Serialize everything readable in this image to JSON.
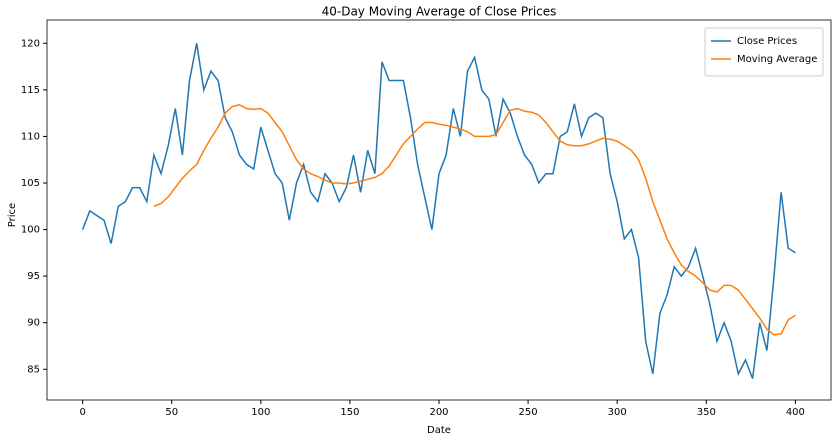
{
  "chart_data": {
    "type": "line",
    "title": "40-Day Moving Average of Close Prices",
    "x_label": "Date",
    "y_label": "Price",
    "x": [
      0,
      4,
      8,
      12,
      16,
      20,
      24,
      28,
      32,
      36,
      40,
      44,
      48,
      52,
      56,
      60,
      64,
      68,
      72,
      76,
      80,
      84,
      88,
      92,
      96,
      100,
      104,
      108,
      112,
      116,
      120,
      124,
      128,
      132,
      136,
      140,
      144,
      148,
      152,
      156,
      160,
      164,
      168,
      172,
      176,
      180,
      184,
      188,
      192,
      196,
      200,
      204,
      208,
      212,
      216,
      220,
      224,
      228,
      232,
      236,
      240,
      244,
      248,
      252,
      256,
      260,
      264,
      268,
      272,
      276,
      280,
      284,
      288,
      292,
      296,
      300,
      304,
      308,
      312,
      316,
      320,
      324,
      328,
      332,
      336,
      340,
      344,
      348,
      352,
      356,
      360,
      364,
      368,
      372,
      376,
      380,
      384,
      388,
      392,
      396,
      400
    ],
    "series": [
      {
        "name": "Close Prices",
        "color": "#1f77b4",
        "values": [
          100,
          102,
          101.5,
          101,
          98.5,
          102.5,
          103,
          104.5,
          104.5,
          103,
          108,
          106,
          109,
          113,
          108,
          116,
          120,
          115,
          117,
          116,
          112,
          110.5,
          108,
          107,
          106.5,
          111,
          108.5,
          106,
          105,
          101,
          105,
          107,
          104,
          103,
          106,
          105,
          103,
          104.5,
          108,
          104,
          108.5,
          106,
          118,
          116,
          116,
          116,
          112,
          107,
          103.5,
          100,
          106,
          108,
          113,
          110,
          117,
          118.5,
          115,
          114,
          110,
          114,
          112.5,
          110,
          108,
          107,
          105,
          106,
          106,
          110,
          110.5,
          113.5,
          110,
          112,
          112.5,
          112,
          106,
          103,
          99,
          100,
          97,
          88,
          84.5,
          91,
          93,
          96,
          95,
          96,
          98,
          95,
          92,
          88,
          90,
          88,
          84.5,
          86,
          84,
          90,
          87,
          95,
          104,
          98,
          97.5
        ]
      },
      {
        "name": "Moving Average",
        "color": "#ff7f0e",
        "values": [
          null,
          null,
          null,
          null,
          null,
          null,
          null,
          null,
          null,
          null,
          102.5,
          102.8,
          103.5,
          104.5,
          105.5,
          106.3,
          107,
          108.5,
          109.8,
          111,
          112.5,
          113.2,
          113.4,
          113,
          112.9,
          113,
          112.5,
          111.5,
          110.5,
          109,
          107.5,
          106.5,
          106,
          105.7,
          105.3,
          105,
          105,
          104.9,
          105,
          105.2,
          105.4,
          105.6,
          106,
          106.8,
          108,
          109.2,
          110,
          110.8,
          111.5,
          111.5,
          111.3,
          111.2,
          111,
          110.8,
          110.5,
          110,
          110,
          110,
          110.2,
          111.5,
          112.8,
          113,
          112.7,
          112.6,
          112.3,
          111.5,
          110.5,
          109.5,
          109.1,
          109,
          109,
          109.2,
          109.5,
          109.8,
          109.7,
          109.5,
          109,
          108.5,
          107.5,
          105.5,
          103,
          101,
          99,
          97.5,
          96.2,
          95.5,
          95,
          94.3,
          93.5,
          93.3,
          94,
          94,
          93.5,
          92.5,
          91.5,
          90.5,
          89.3,
          88.7,
          88.8,
          90.3,
          90.8
        ]
      }
    ],
    "xlim": [
      -20,
      420
    ],
    "ylim": [
      81.7,
      122.5
    ],
    "xticks": [
      0,
      50,
      100,
      150,
      200,
      250,
      300,
      350,
      400
    ],
    "yticks": [
      85,
      90,
      95,
      100,
      105,
      110,
      115,
      120
    ],
    "legend": "upper right"
  }
}
